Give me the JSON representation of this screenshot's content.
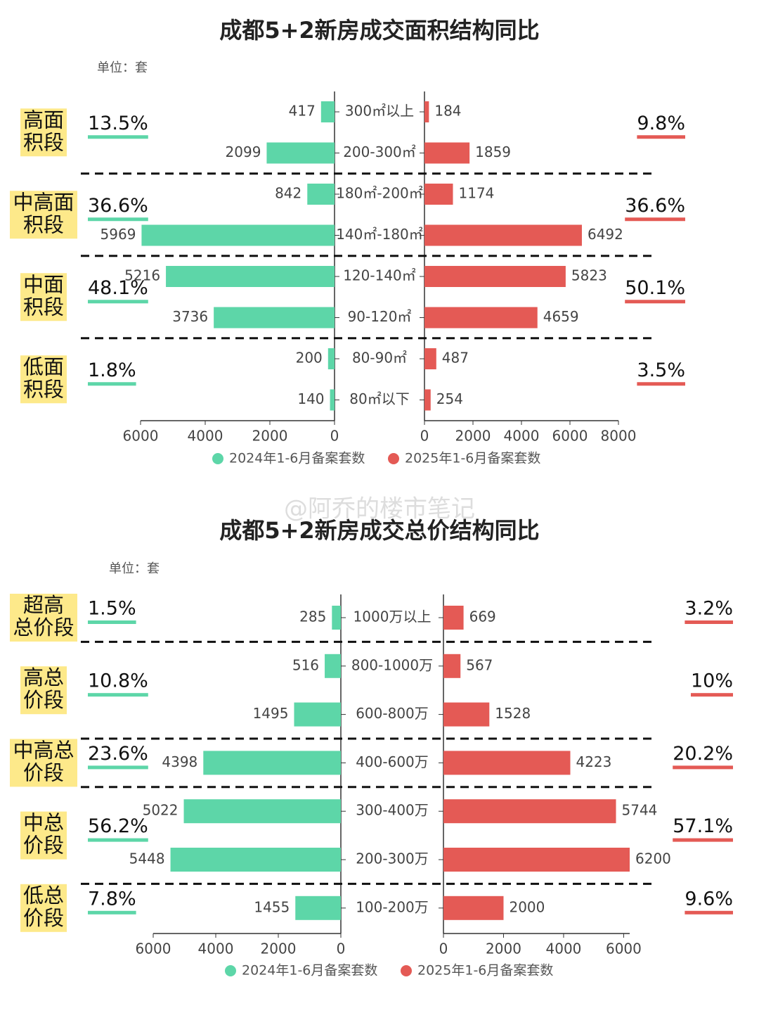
{
  "watermark": "@阿乔的楼市笔记",
  "chart_data": [
    {
      "type": "butterfly-bar",
      "title": "成都5+2新房成交面积结构同比",
      "unit": "单位：套",
      "categories": [
        "300㎡以上",
        "200-300㎡",
        "180㎡-200㎡",
        "140㎡-180㎡",
        "120-140㎡",
        "90-120㎡",
        "80-90㎡",
        "80㎡以下"
      ],
      "series": [
        {
          "name": "2024年1-6月备案套数",
          "color": "#5dd6a8",
          "values": [
            417,
            2099,
            842,
            5969,
            5216,
            3736,
            200,
            140
          ]
        },
        {
          "name": "2025年1-6月备案套数",
          "color": "#e45a55",
          "values": [
            184,
            1859,
            1174,
            6492,
            5823,
            4659,
            487,
            254
          ]
        }
      ],
      "x1lim": [
        0,
        6000
      ],
      "x1ticks": [
        0,
        2000,
        4000,
        6000
      ],
      "x2lim": [
        0,
        8000
      ],
      "x2ticks": [
        0,
        2000,
        4000,
        6000,
        8000
      ],
      "groups": [
        {
          "label": [
            "高面",
            "积段"
          ],
          "rows": 2,
          "shares": [
            13.5,
            9.8
          ],
          "share_labels": [
            "13.5%",
            "9.8%"
          ]
        },
        {
          "label": [
            "中高面",
            "积段"
          ],
          "rows": 2,
          "shares": [
            36.6,
            36.6
          ],
          "share_labels": [
            "36.6%",
            "36.6%"
          ]
        },
        {
          "label": [
            "中面",
            "积段"
          ],
          "rows": 2,
          "shares": [
            48.1,
            50.1
          ],
          "share_labels": [
            "48.1%",
            "50.1%"
          ]
        },
        {
          "label": [
            "低面",
            "积段"
          ],
          "rows": 2,
          "shares": [
            1.8,
            3.5
          ],
          "share_labels": [
            "1.8%",
            "3.5%"
          ]
        }
      ]
    },
    {
      "type": "butterfly-bar",
      "title": "成都5+2新房成交总价结构同比",
      "unit": "单位：套",
      "categories": [
        "1000万以上",
        "800-1000万",
        "600-800万",
        "400-600万",
        "300-400万",
        "200-300万",
        "100-200万"
      ],
      "series": [
        {
          "name": "2024年1-6月备案套数",
          "color": "#5dd6a8",
          "values": [
            285,
            516,
            1495,
            4398,
            5022,
            5448,
            1455
          ]
        },
        {
          "name": "2025年1-6月备案套数",
          "color": "#e45a55",
          "values": [
            669,
            567,
            1528,
            4223,
            5744,
            6200,
            2000
          ]
        }
      ],
      "x1lim": [
        0,
        6000
      ],
      "x1ticks": [
        0,
        2000,
        4000,
        6000
      ],
      "x2lim": [
        0,
        6200
      ],
      "x2ticks": [
        0,
        2000,
        4000,
        6000
      ],
      "groups": [
        {
          "label": [
            "超高",
            "总价段"
          ],
          "rows": 1,
          "shares": [
            1.5,
            3.2
          ],
          "share_labels": [
            "1.5%",
            "3.2%"
          ]
        },
        {
          "label": [
            "高总",
            "价段"
          ],
          "rows": 2,
          "shares": [
            10.8,
            10
          ],
          "share_labels": [
            "10.8%",
            "10%"
          ]
        },
        {
          "label": [
            "中高总",
            "价段"
          ],
          "rows": 1,
          "shares": [
            23.6,
            20.2
          ],
          "share_labels": [
            "23.6%",
            "20.2%"
          ]
        },
        {
          "label": [
            "中总",
            "价段"
          ],
          "rows": 2,
          "shares": [
            56.2,
            57.1
          ],
          "share_labels": [
            "56.2%",
            "57.1%"
          ]
        },
        {
          "label": [
            "低总",
            "价段"
          ],
          "rows": 1,
          "shares": [
            7.8,
            9.6
          ],
          "share_labels": [
            "7.8%",
            "9.6%"
          ]
        }
      ]
    }
  ]
}
